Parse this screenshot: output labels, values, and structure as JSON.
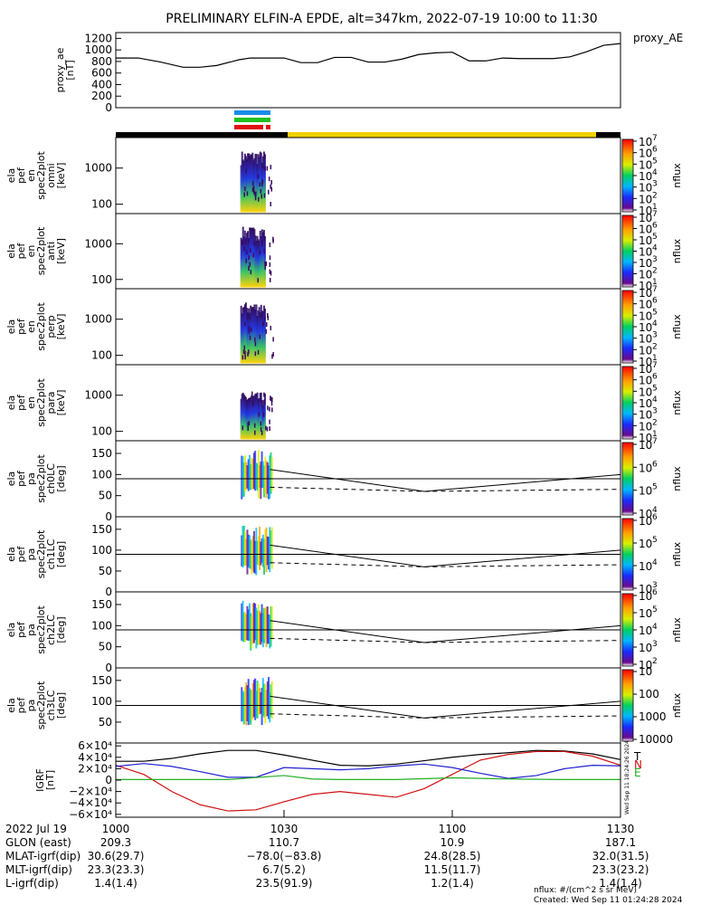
{
  "chart_data": {
    "type": "line",
    "title": "PRELIMINARY ELFIN-A EPDE, alt=347km, 2022-07-19 10:00 to 11:30",
    "x_range": [
      "10:00",
      "11:30"
    ],
    "x_ticks": [
      "1000",
      "1030",
      "1100",
      "1130"
    ],
    "panels": [
      {
        "id": "ae",
        "ylabel": [
          "proxy_ae",
          "[nT]"
        ],
        "ylim": [
          0,
          1300
        ],
        "yticks": [
          "1200",
          "1000",
          "800",
          "600",
          "400",
          "200",
          "0"
        ],
        "legend": "proxy_AE",
        "series": [
          {
            "name": "proxy_AE",
            "color": "#000000",
            "x": [
              0,
              4,
              8,
              12,
              15,
              18,
              22,
              24,
              27,
              30,
              33,
              36,
              39,
              42,
              45,
              48,
              51,
              54,
              57,
              60,
              63,
              66,
              69,
              72,
              75,
              78,
              81,
              84,
              87,
              90
            ],
            "y": [
              860,
              860,
              790,
              700,
              700,
              730,
              830,
              860,
              860,
              860,
              780,
              780,
              870,
              870,
              790,
              790,
              840,
              920,
              950,
              960,
              810,
              810,
              860,
              850,
              850,
              850,
              880,
              970,
              1080,
              1110
            ]
          }
        ]
      },
      {
        "id": "omni",
        "ylabel": [
          "ela",
          "pef",
          "en",
          "spec2plot",
          "omni",
          "[keV]"
        ],
        "kind": "energy",
        "ylim": [
          55,
          7000
        ],
        "yticks": [
          "1000",
          "100"
        ],
        "clabel": "nflux",
        "ctick_exp": [
          "1",
          "2",
          "3",
          "4",
          "5",
          "6",
          "7"
        ]
      },
      {
        "id": "anti",
        "ylabel": [
          "ela",
          "pef",
          "en",
          "spec2plot",
          "anti",
          "[keV]"
        ],
        "kind": "energy",
        "ylim": [
          55,
          7000
        ],
        "yticks": [
          "1000",
          "100"
        ],
        "clabel": "nflux",
        "ctick_exp": [
          "1",
          "2",
          "3",
          "4",
          "5",
          "6",
          "7"
        ]
      },
      {
        "id": "perp",
        "ylabel": [
          "ela",
          "pef",
          "en",
          "spec2plot",
          "perp",
          "[keV]"
        ],
        "kind": "energy",
        "ylim": [
          55,
          7000
        ],
        "yticks": [
          "1000",
          "100"
        ],
        "clabel": "nflux",
        "ctick_exp": [
          "1",
          "2",
          "3",
          "4",
          "5",
          "6",
          "7"
        ]
      },
      {
        "id": "para",
        "ylabel": [
          "ela",
          "pef",
          "en",
          "spec2plot",
          "para",
          "[keV]"
        ],
        "kind": "energy",
        "ylim": [
          55,
          7000
        ],
        "yticks": [
          "1000",
          "100"
        ],
        "clabel": "nflux",
        "ctick_exp": [
          "1",
          "2",
          "3",
          "4",
          "5",
          "6",
          "7"
        ]
      },
      {
        "id": "ch0",
        "ylabel": [
          "ela",
          "pef",
          "pa",
          "spec2plot",
          "ch0LC",
          "[deg]"
        ],
        "kind": "pa",
        "ylim": [
          0,
          180
        ],
        "yticks": [
          "150",
          "100",
          "50",
          "0"
        ],
        "clabel": "nflux",
        "ctick_exp": [
          "4",
          "5",
          "6",
          "7"
        ]
      },
      {
        "id": "ch1",
        "ylabel": [
          "ela",
          "pef",
          "pa",
          "spec2plot",
          "ch1LC",
          "[deg]"
        ],
        "kind": "pa",
        "ylim": [
          0,
          180
        ],
        "yticks": [
          "150",
          "100",
          "50",
          "0"
        ],
        "clabel": "nflux",
        "ctick_exp": [
          "3",
          "4",
          "5",
          "6"
        ]
      },
      {
        "id": "ch2",
        "ylabel": [
          "ela",
          "pef",
          "pa",
          "spec2plot",
          "ch2LC",
          "[deg]"
        ],
        "kind": "pa",
        "ylim": [
          0,
          180
        ],
        "yticks": [
          "150",
          "100",
          "50",
          "0"
        ],
        "clabel": "nflux",
        "ctick_exp": [
          "2",
          "3",
          "4",
          "5",
          "6"
        ]
      },
      {
        "id": "ch3",
        "ylabel": [
          "ela",
          "pef",
          "pa",
          "spec2plot",
          "ch3LC",
          "[deg]"
        ],
        "kind": "pa",
        "ylim": [
          0,
          180
        ],
        "yticks": [
          "150",
          "100",
          "50"
        ],
        "clabel": "nflux",
        "ctick_labels": [
          "10000",
          "1000",
          "100",
          "10"
        ]
      },
      {
        "id": "igrf",
        "ylabel": [
          "IGRF",
          "[nT]"
        ],
        "ylim": [
          -65000,
          65000
        ],
        "yticks": [
          "6×10⁴",
          "4×10⁴",
          "2×10⁴",
          "0",
          "−2×10⁴",
          "−4×10⁴",
          "−6×10⁴"
        ],
        "legend_letters": [
          {
            "text": "T",
            "color": "#000000"
          },
          {
            "text": "N",
            "color": "#d01010"
          },
          {
            "text": "E",
            "color": "#20b020"
          }
        ],
        "series": [
          {
            "name": "T",
            "color": "#000000",
            "x": [
              0,
              5,
              10,
              15,
              20,
              25,
              30,
              35,
              40,
              45,
              50,
              55,
              60,
              65,
              70,
              75,
              80,
              85,
              90
            ],
            "y": [
              33000,
              33000,
              38000,
              46000,
              52000,
              52000,
              44000,
              35000,
              26000,
              25000,
              28000,
              34000,
              40000,
              45000,
              48000,
              52000,
              51000,
              46000,
              36000
            ]
          },
          {
            "name": "N",
            "color": "#d01010",
            "x": [
              0,
              5,
              10,
              15,
              20,
              25,
              30,
              35,
              40,
              45,
              50,
              55,
              60,
              65,
              70,
              75,
              80,
              85,
              90
            ],
            "y": [
              26000,
              10000,
              -20000,
              -43000,
              -54000,
              -52000,
              -38000,
              -25000,
              -20000,
              -25000,
              -30000,
              -15000,
              10000,
              35000,
              45000,
              50000,
              50000,
              42000,
              26000
            ]
          },
          {
            "name": "E",
            "color": "#2020d0",
            "x": [
              0,
              5,
              10,
              15,
              20,
              25,
              30,
              35,
              40,
              45,
              50,
              55,
              60,
              65,
              70,
              75,
              80,
              85,
              90
            ],
            "y": [
              24000,
              29000,
              24000,
              15000,
              5000,
              5000,
              22000,
              20000,
              18000,
              20000,
              25000,
              28000,
              22000,
              12000,
              3000,
              8000,
              20000,
              26000,
              25000
            ]
          },
          {
            "name": "E_green",
            "color": "#20b020",
            "x": [
              0,
              10,
              20,
              30,
              35,
              40,
              50,
              60,
              70,
              80,
              90
            ],
            "y": [
              1000,
              1000,
              1000,
              8000,
              2000,
              1000,
              1000,
              4000,
              2000,
              1000,
              1000
            ]
          }
        ]
      }
    ],
    "footer": {
      "date": "2022 Jul 19",
      "rows": [
        {
          "label": "GLON (east)",
          "values": [
            "209.3",
            "110.7",
            "10.9",
            "187.1"
          ]
        },
        {
          "label": "MLAT-igrf(dip)",
          "values": [
            "30.6(29.7)",
            "−78.0(−83.8)",
            "24.8(28.5)",
            "32.0(31.5)"
          ]
        },
        {
          "label": "MLT-igrf(dip)",
          "values": [
            "23.3(23.3)",
            "6.7(5.2)",
            "11.5(11.7)",
            "23.3(23.2)"
          ]
        },
        {
          "label": "L-igrf(dip)",
          "values": [
            "1.4(1.4)",
            "23.5(91.9)",
            "1.2(1.4)",
            "1.4(1.4)"
          ]
        }
      ],
      "units": "nflux: #/(cm^2 s sr MeV)",
      "created": "Created: Wed Sep 11 01:24:28 2024",
      "side_stamp": "Wed Sep 11 18:24:26 2024"
    }
  }
}
